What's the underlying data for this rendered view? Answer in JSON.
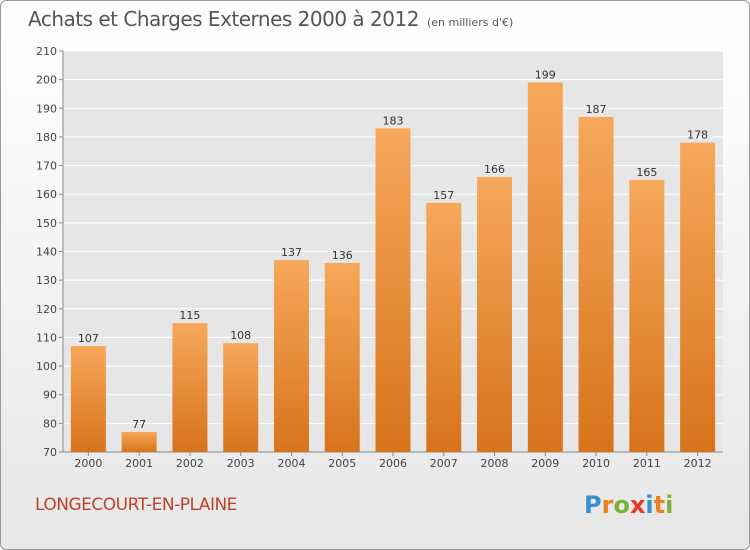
{
  "header": {
    "title": "Achats et Charges Externes 2000 à 2012",
    "subtitle": "(en milliers d'€)"
  },
  "footer": {
    "commune": "LONGECOURT-EN-PLAINE",
    "logo_parts": [
      {
        "text": "P",
        "color": "#3a8fd0"
      },
      {
        "text": "r",
        "color": "#e8821e"
      },
      {
        "text": "o",
        "color": "#7ab23a"
      },
      {
        "text": "x",
        "color": "#e23a2a"
      },
      {
        "text": "i",
        "color": "#3a8fd0"
      },
      {
        "text": "t",
        "color": "#e8821e"
      },
      {
        "text": "i",
        "color": "#7ab23a"
      }
    ]
  },
  "chart_data": {
    "type": "bar",
    "title": "Achats et Charges Externes 2000 à 2012",
    "subtitle": "(en milliers d'€)",
    "xlabel": "",
    "ylabel": "",
    "categories": [
      "2000",
      "2001",
      "2002",
      "2003",
      "2004",
      "2005",
      "2006",
      "2007",
      "2008",
      "2009",
      "2010",
      "2011",
      "2012"
    ],
    "values": [
      107,
      77,
      115,
      108,
      137,
      136,
      183,
      157,
      166,
      199,
      187,
      165,
      178
    ],
    "ylim": [
      70,
      210
    ],
    "yticks": [
      70,
      80,
      90,
      100,
      110,
      120,
      130,
      140,
      150,
      160,
      170,
      180,
      190,
      200,
      210
    ],
    "grid": true,
    "legend": "none",
    "colors": {
      "bar_top": "#f6a85a",
      "bar_bottom": "#d8731c",
      "grid": "#ffffff",
      "axis": "#8a8a8a"
    }
  }
}
